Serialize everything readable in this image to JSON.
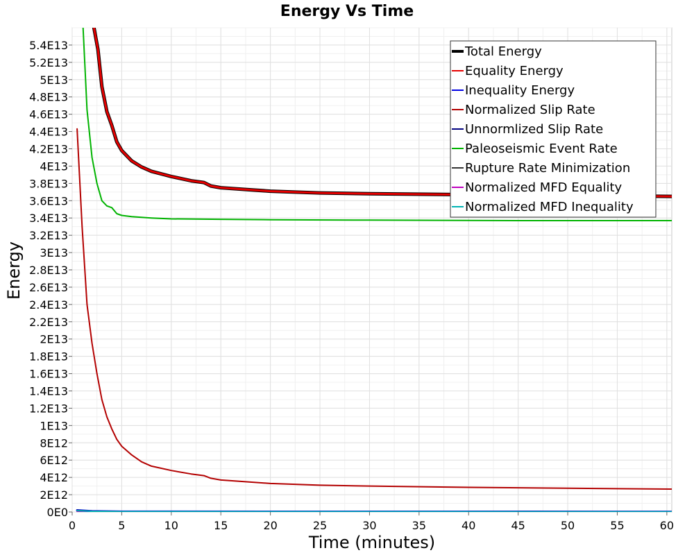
{
  "chart_data": {
    "type": "line",
    "title": "Energy Vs Time",
    "xlabel": "Time (minutes)",
    "ylabel": "Energy",
    "xlim": [
      0,
      60.5
    ],
    "ylim": [
      0,
      56000000000000.0
    ],
    "x_ticks": [
      0,
      5,
      10,
      15,
      20,
      25,
      30,
      35,
      40,
      45,
      50,
      55,
      60
    ],
    "x_tick_labels": [
      "0",
      "5",
      "10",
      "15",
      "20",
      "25",
      "30",
      "35",
      "40",
      "45",
      "50",
      "55",
      "60"
    ],
    "y_ticks": [
      0,
      2000000000000.0,
      4000000000000.0,
      6000000000000.0,
      8000000000000.0,
      10000000000000.0,
      12000000000000.0,
      14000000000000.0,
      16000000000000.0,
      18000000000000.0,
      20000000000000.0,
      22000000000000.0,
      24000000000000.0,
      26000000000000.0,
      28000000000000.0,
      30000000000000.0,
      32000000000000.0,
      34000000000000.0,
      36000000000000.0,
      38000000000000.0,
      40000000000000.0,
      42000000000000.0,
      44000000000000.0,
      46000000000000.0,
      48000000000000.0,
      50000000000000.0,
      52000000000000.0,
      54000000000000.0
    ],
    "y_tick_labels": [
      "0E0",
      "2E12",
      "4E12",
      "6E12",
      "8E12",
      "1E13",
      "1.2E13",
      "1.4E13",
      "1.6E13",
      "1.8E13",
      "2E13",
      "2.2E13",
      "2.4E13",
      "2.6E13",
      "2.8E13",
      "3E13",
      "3.2E13",
      "3.4E13",
      "3.6E13",
      "3.8E13",
      "4E13",
      "4.2E13",
      "4.4E13",
      "4.6E13",
      "4.8E13",
      "5E13",
      "5.2E13",
      "5.4E13"
    ],
    "grid": true,
    "legend_position": "top-right",
    "series": [
      {
        "name": "Total Energy",
        "color": "#000000",
        "width": 5,
        "x": [
          2.2,
          2.6,
          3.0,
          3.5,
          4.0,
          4.5,
          5.0,
          6.0,
          7.0,
          8.0,
          10.0,
          12.0,
          13.3,
          14.0,
          15.0,
          17.5,
          20.0,
          25.0,
          30.0,
          40.0,
          50.0,
          60.5
        ],
        "y": [
          56000000000000.0,
          53500000000000.0,
          49200000000000.0,
          46300000000000.0,
          44700000000000.0,
          42800000000000.0,
          41800000000000.0,
          40600000000000.0,
          39900000000000.0,
          39400000000000.0,
          38800000000000.0,
          38300000000000.0,
          38100000000000.0,
          37700000000000.0,
          37500000000000.0,
          37300000000000.0,
          37100000000000.0,
          36900000000000.0,
          36800000000000.0,
          36700000000000.0,
          36600000000000.0,
          36500000000000.0
        ]
      },
      {
        "name": "Equality Energy",
        "color": "#e60000",
        "width": 3,
        "x": [
          2.2,
          2.6,
          3.0,
          3.5,
          4.0,
          4.5,
          5.0,
          6.0,
          7.0,
          8.0,
          10.0,
          12.0,
          13.3,
          14.0,
          15.0,
          17.5,
          20.0,
          25.0,
          30.0,
          40.0,
          50.0,
          60.5
        ],
        "y": [
          56000000000000.0,
          53500000000000.0,
          49200000000000.0,
          46300000000000.0,
          44700000000000.0,
          42800000000000.0,
          41800000000000.0,
          40600000000000.0,
          39900000000000.0,
          39400000000000.0,
          38800000000000.0,
          38300000000000.0,
          38100000000000.0,
          37700000000000.0,
          37500000000000.0,
          37300000000000.0,
          37100000000000.0,
          36900000000000.0,
          36800000000000.0,
          36700000000000.0,
          36600000000000.0,
          36500000000000.0
        ]
      },
      {
        "name": "Inequality Energy",
        "color": "#0000e6",
        "width": 3,
        "x": [
          0.5,
          2,
          5,
          60.5
        ],
        "y": [
          200000000000.0,
          100000000000.0,
          50000000000.0,
          30000000000.0
        ]
      },
      {
        "name": "Normalized Slip Rate",
        "color": "#b30000",
        "width": 2,
        "x": [
          0.5,
          1.0,
          1.5,
          2.0,
          2.5,
          3.0,
          3.5,
          4.0,
          4.5,
          5.0,
          6.0,
          7.0,
          8.0,
          10.0,
          12.0,
          13.3,
          14.0,
          15.0,
          17.5,
          20.0,
          25.0,
          30.0,
          40.0,
          50.0,
          60.5
        ],
        "y": [
          44300000000000.0,
          33000000000000.0,
          24000000000000.0,
          19500000000000.0,
          16000000000000.0,
          13000000000000.0,
          11000000000000.0,
          9600000000000.0,
          8400000000000.0,
          7600000000000.0,
          6600000000000.0,
          5800000000000.0,
          5300000000000.0,
          4800000000000.0,
          4400000000000.0,
          4200000000000.0,
          3900000000000.0,
          3700000000000.0,
          3500000000000.0,
          3300000000000.0,
          3100000000000.0,
          3000000000000.0,
          2850000000000.0,
          2750000000000.0,
          2650000000000.0
        ]
      },
      {
        "name": "Unnormlized Slip Rate",
        "color": "#000080",
        "width": 2,
        "x": [
          0.5,
          2,
          5,
          60.5
        ],
        "y": [
          200000000000.0,
          100000000000.0,
          50000000000.0,
          30000000000.0
        ]
      },
      {
        "name": "Paleoseismic Event Rate",
        "color": "#00b300",
        "width": 2,
        "x": [
          1.1,
          1.5,
          2.0,
          2.5,
          3.0,
          3.5,
          4.0,
          4.5,
          5.0,
          6.0,
          8.0,
          10.0,
          15.0,
          20.0,
          30.0,
          45.0,
          60.5
        ],
        "y": [
          56000000000000.0,
          46500000000000.0,
          41000000000000.0,
          38000000000000.0,
          36000000000000.0,
          35400000000000.0,
          35200000000000.0,
          34500000000000.0,
          34300000000000.0,
          34150000000000.0,
          34000000000000.0,
          33900000000000.0,
          33850000000000.0,
          33800000000000.0,
          33750000000000.0,
          33700000000000.0,
          33700000000000.0
        ]
      },
      {
        "name": "Rupture Rate Minimization",
        "color": "#333333",
        "width": 2,
        "x": [
          0.5,
          60.5
        ],
        "y": [
          10000000000.0,
          10000000000.0
        ]
      },
      {
        "name": "Normalized MFD Equality",
        "color": "#c000c0",
        "width": 2,
        "x": [
          0.5,
          60.5
        ],
        "y": [
          10000000000.0,
          10000000000.0
        ]
      },
      {
        "name": "Normalized MFD Inequality",
        "color": "#00b3b3",
        "width": 2,
        "x": [
          0.5,
          2,
          5,
          60.5
        ],
        "y": [
          150000000000.0,
          80000000000.0,
          40000000000.0,
          20000000000.0
        ]
      }
    ]
  }
}
